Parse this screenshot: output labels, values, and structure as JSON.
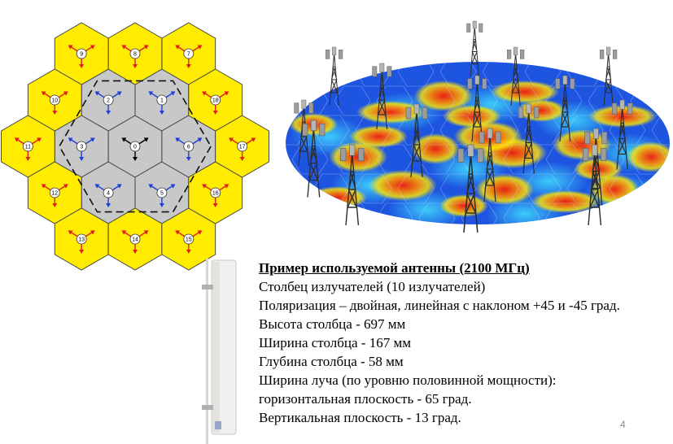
{
  "diagram": {
    "cells": [
      {
        "label": "0",
        "kind": "center"
      },
      {
        "label": "1",
        "kind": "inner"
      },
      {
        "label": "2",
        "kind": "inner"
      },
      {
        "label": "3",
        "kind": "inner"
      },
      {
        "label": "4",
        "kind": "inner"
      },
      {
        "label": "5",
        "kind": "inner"
      },
      {
        "label": "6",
        "kind": "inner"
      },
      {
        "label": "7",
        "kind": "outer"
      },
      {
        "label": "8",
        "kind": "outer"
      },
      {
        "label": "9",
        "kind": "outer"
      },
      {
        "label": "10",
        "kind": "outer"
      },
      {
        "label": "11",
        "kind": "outer"
      },
      {
        "label": "12",
        "kind": "outer"
      },
      {
        "label": "13",
        "kind": "outer"
      },
      {
        "label": "14",
        "kind": "outer"
      },
      {
        "label": "15",
        "kind": "outer"
      },
      {
        "label": "16",
        "kind": "outer"
      },
      {
        "label": "17",
        "kind": "outer"
      },
      {
        "label": "18",
        "kind": "outer"
      }
    ],
    "colors": {
      "center_fill": "#c8c8c8",
      "inner_fill": "#c8c8c8",
      "outer_fill": "#ffec00",
      "center_arrows": "#000000",
      "inner_arrows": "#1f3fd6",
      "outer_arrows": "#e02020"
    }
  },
  "coverage_colors": [
    "#1d3fd1",
    "#2f8df2",
    "#35d0f0",
    "#ffe000",
    "#ff7a00",
    "#e81010"
  ],
  "antenna": {
    "title": "Пример используемой антенны (2100 МГц)",
    "lines": [
      "Столбец излучателей (10 излучателей)",
      "Поляризация – двойная, линейная с наклоном +45 и -45 град.",
      "Высота столбца - 697 мм",
      "Ширина столбца - 167 мм",
      "Глубина столбца - 58 мм",
      "Ширина луча (по уровню половинной мощности):",
      "горизонтальная плоскость - 65 град.",
      "Вертикальная плоскость - 13 град."
    ]
  },
  "page_number": "4"
}
